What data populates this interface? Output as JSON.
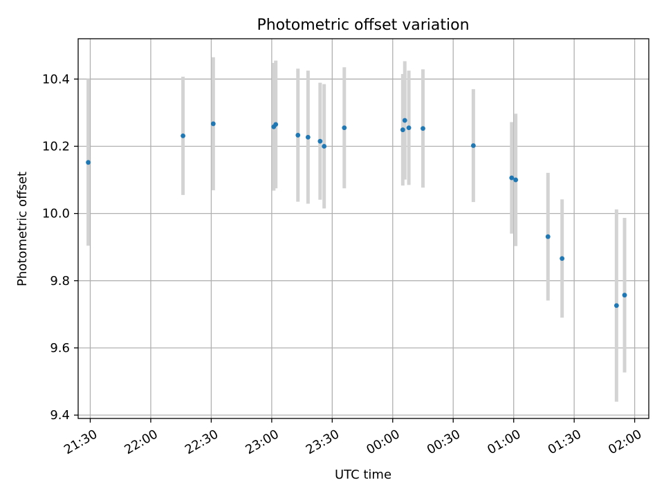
{
  "chart_data": {
    "type": "scatter",
    "title": "Photometric offset variation",
    "xlabel": "UTC time",
    "ylabel": "Photometric offset",
    "x_axis": "time",
    "x_ticks": [
      "21:30",
      "22:00",
      "22:30",
      "23:00",
      "23:30",
      "00:00",
      "00:30",
      "01:00",
      "01:30",
      "02:00"
    ],
    "y_ticks": [
      "9.4",
      "9.6",
      "9.8",
      "10.0",
      "10.2",
      "10.4"
    ],
    "xlim": [
      "21:24",
      "02:07"
    ],
    "ylim": [
      9.39,
      10.52
    ],
    "grid": true,
    "legend": false,
    "colors": {
      "point": "#1f77b4",
      "errorbar": "#d3d3d3"
    },
    "points": [
      {
        "t": "21:29:00",
        "y": 10.152,
        "err": 0.248
      },
      {
        "t": "22:16:00",
        "y": 10.231,
        "err": 0.176
      },
      {
        "t": "22:31:00",
        "y": 10.267,
        "err": 0.198
      },
      {
        "t": "23:01:00",
        "y": 10.258,
        "err": 0.19
      },
      {
        "t": "23:02:00",
        "y": 10.265,
        "err": 0.19
      },
      {
        "t": "23:13:00",
        "y": 10.233,
        "err": 0.198
      },
      {
        "t": "23:18:00",
        "y": 10.227,
        "err": 0.198
      },
      {
        "t": "23:24:00",
        "y": 10.215,
        "err": 0.174
      },
      {
        "t": "23:26:00",
        "y": 10.2,
        "err": 0.185
      },
      {
        "t": "23:36:00",
        "y": 10.255,
        "err": 0.18
      },
      {
        "t": "00:05:00",
        "y": 10.249,
        "err": 0.166
      },
      {
        "t": "00:06:00",
        "y": 10.277,
        "err": 0.176
      },
      {
        "t": "00:08:00",
        "y": 10.255,
        "err": 0.17
      },
      {
        "t": "00:15:00",
        "y": 10.253,
        "err": 0.176
      },
      {
        "t": "00:40:00",
        "y": 10.202,
        "err": 0.168
      },
      {
        "t": "00:59:00",
        "y": 10.106,
        "err": 0.166
      },
      {
        "t": "01:01:00",
        "y": 10.1,
        "err": 0.197
      },
      {
        "t": "01:17:00",
        "y": 9.931,
        "err": 0.19
      },
      {
        "t": "01:24:00",
        "y": 9.866,
        "err": 0.176
      },
      {
        "t": "01:51:00",
        "y": 9.726,
        "err": 0.286
      },
      {
        "t": "01:55:00",
        "y": 9.757,
        "err": 0.23
      }
    ]
  }
}
